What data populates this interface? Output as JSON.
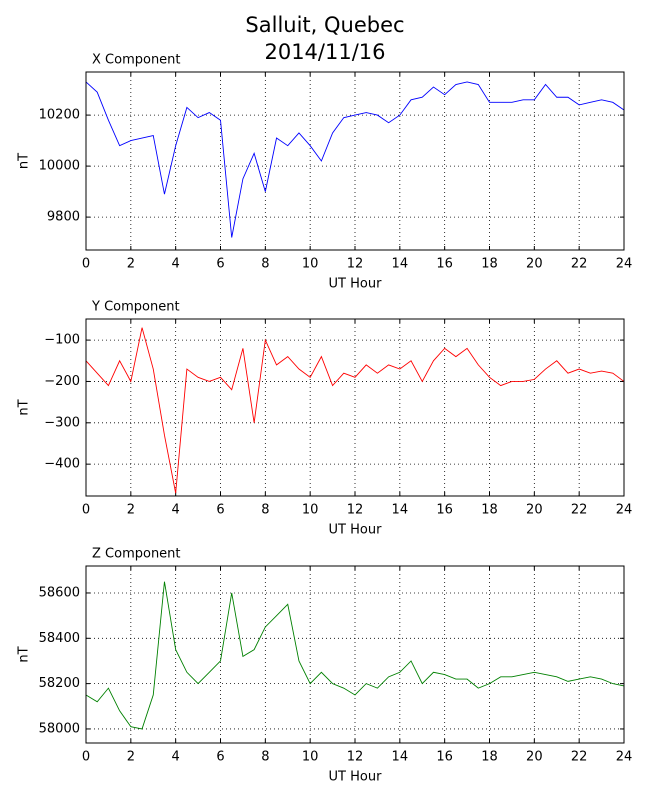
{
  "title": "Salluit, Quebec",
  "subtitle": "2014/11/16",
  "chart_data": [
    {
      "type": "line",
      "title": "X Component",
      "xlabel": "UT Hour",
      "ylabel": "nT",
      "color": "#0000ff",
      "grid": true,
      "x": [
        0,
        0.5,
        1,
        1.5,
        2,
        2.5,
        3,
        3.5,
        4,
        4.5,
        5,
        5.5,
        6,
        6.5,
        7,
        7.5,
        8,
        8.5,
        9,
        9.5,
        10,
        10.5,
        11,
        11.5,
        12,
        12.5,
        13,
        13.5,
        14,
        14.5,
        15,
        15.5,
        16,
        16.5,
        17,
        17.5,
        18,
        18.5,
        19,
        19.5,
        20,
        20.5,
        21,
        21.5,
        22,
        22.5,
        23,
        23.5,
        24
      ],
      "values": [
        10330,
        10290,
        10180,
        10080,
        10100,
        10110,
        10120,
        9890,
        10080,
        10230,
        10190,
        10210,
        10180,
        9720,
        9950,
        10050,
        9900,
        10110,
        10080,
        10130,
        10080,
        10020,
        10130,
        10190,
        10200,
        10210,
        10200,
        10170,
        10200,
        10260,
        10270,
        10310,
        10280,
        10320,
        10330,
        10320,
        10250,
        10250,
        10250,
        10260,
        10260,
        10320,
        10270,
        10270,
        10240,
        10250,
        10260,
        10250,
        10220
      ],
      "xlim": [
        0,
        24
      ],
      "xticks": [
        0,
        2,
        4,
        6,
        8,
        10,
        12,
        14,
        16,
        18,
        20,
        22,
        24
      ],
      "ylim": [
        9671,
        10369
      ],
      "yticks": [
        9800,
        10000,
        10200
      ]
    },
    {
      "type": "line",
      "title": "Y Component",
      "xlabel": "UT Hour",
      "ylabel": "nT",
      "color": "#ff0000",
      "grid": true,
      "x": [
        0,
        0.5,
        1,
        1.5,
        2,
        2.5,
        3,
        3.5,
        4,
        4.5,
        5,
        5.5,
        6,
        6.5,
        7,
        7.5,
        8,
        8.5,
        9,
        9.5,
        10,
        10.5,
        11,
        11.5,
        12,
        12.5,
        13,
        13.5,
        14,
        14.5,
        15,
        15.5,
        16,
        16.5,
        17,
        17.5,
        18,
        18.5,
        19,
        19.5,
        20,
        20.5,
        21,
        21.5,
        22,
        22.5,
        23,
        23.5,
        24
      ],
      "values": [
        -150,
        -180,
        -210,
        -150,
        -200,
        -70,
        -170,
        -330,
        -470,
        -170,
        -190,
        -200,
        -190,
        -220,
        -120,
        -300,
        -100,
        -160,
        -140,
        -170,
        -190,
        -140,
        -210,
        -180,
        -190,
        -160,
        -180,
        -160,
        -170,
        -150,
        -200,
        -150,
        -120,
        -140,
        -120,
        -160,
        -190,
        -210,
        -200,
        -200,
        -195,
        -170,
        -150,
        -180,
        -170,
        -180,
        -175,
        -180,
        -200
      ],
      "xlim": [
        0,
        24
      ],
      "xticks": [
        0,
        2,
        4,
        6,
        8,
        10,
        12,
        14,
        16,
        18,
        20,
        22,
        24
      ],
      "ylim": [
        -477,
        -49
      ],
      "yticks": [
        {
          "value": -400,
          "label": "−400"
        },
        {
          "value": -300,
          "label": "−300"
        },
        {
          "value": -200,
          "label": "−200"
        },
        {
          "value": -100,
          "label": "−100"
        }
      ]
    },
    {
      "type": "line",
      "title": "Z Component",
      "xlabel": "UT Hour",
      "ylabel": "nT",
      "color": "#008000",
      "grid": true,
      "x": [
        0,
        0.5,
        1,
        1.5,
        2,
        2.5,
        3,
        3.5,
        4,
        4.5,
        5,
        5.5,
        6,
        6.5,
        7,
        7.5,
        8,
        8.5,
        9,
        9.5,
        10,
        10.5,
        11,
        11.5,
        12,
        12.5,
        13,
        13.5,
        14,
        14.5,
        15,
        15.5,
        16,
        16.5,
        17,
        17.5,
        18,
        18.5,
        19,
        19.5,
        20,
        20.5,
        21,
        21.5,
        22,
        22.5,
        23,
        23.5,
        24
      ],
      "values": [
        58150,
        58120,
        58180,
        58080,
        58010,
        58000,
        58150,
        58650,
        58350,
        58250,
        58200,
        58250,
        58300,
        58600,
        58320,
        58350,
        58450,
        58500,
        58550,
        58300,
        58200,
        58250,
        58200,
        58180,
        58150,
        58200,
        58180,
        58230,
        58250,
        58300,
        58200,
        58250,
        58240,
        58220,
        58220,
        58180,
        58200,
        58230,
        58230,
        58240,
        58250,
        58240,
        58230,
        58210,
        58220,
        58230,
        58220,
        58200,
        58190
      ],
      "xlim": [
        0,
        24
      ],
      "xticks": [
        0,
        2,
        4,
        6,
        8,
        10,
        12,
        14,
        16,
        18,
        20,
        22,
        24
      ],
      "ylim": [
        57938,
        58719
      ],
      "yticks": [
        58000,
        58200,
        58400,
        58600
      ]
    }
  ]
}
